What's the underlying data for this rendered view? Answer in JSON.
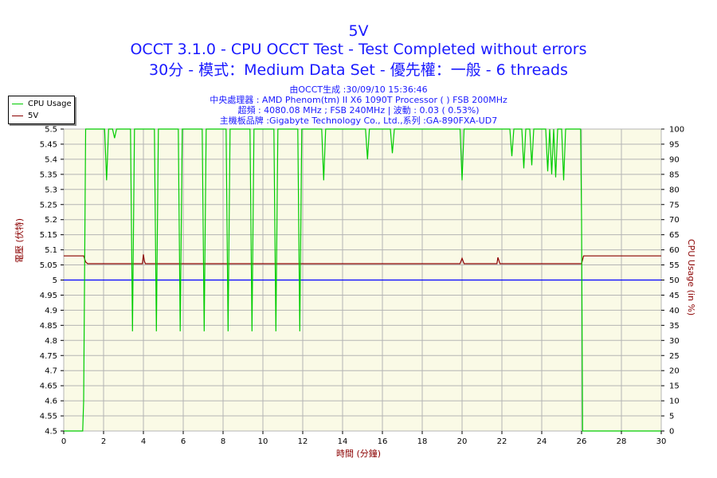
{
  "header": {
    "title": "5V",
    "subtitle1": "OCCT 3.1.0 - CPU OCCT Test - Test Completed without errors",
    "subtitle2": "30分 - 模式：Medium Data Set - 優先權：一般 - 6 threads",
    "info1": "由OCCT生成 :30/09/10 15:36:46",
    "info2": "中央處理器 : AMD Phenom(tm) II X6 1090T Processor (  ) FSB 200MHz",
    "info3": "超頻 : 4080.08 MHz ; FSB 240MHz | 波動 : 0.03 ( 0.53%)",
    "info4": "主機板品牌 :Gigabyte Technology Co., Ltd.,系列 :GA-890FXA-UD7"
  },
  "legend": {
    "cpu": "CPU Usage",
    "v5": "5V"
  },
  "colors": {
    "cpu": "#00cc00",
    "v5": "#8b0000",
    "reference": "#0000ff",
    "plot_bg": "#fafae6",
    "grid": "#b4b4b4"
  },
  "chart_data": {
    "type": "line",
    "xlabel": "時間 (分鐘)",
    "ylabel": "電壓 (伏特)",
    "y2label": "CPU Usage (in %)",
    "xlim": [
      0,
      30
    ],
    "ylim": [
      4.5,
      5.5
    ],
    "y2lim": [
      0,
      100
    ],
    "x_ticks": [
      0,
      2,
      4,
      6,
      8,
      10,
      12,
      14,
      16,
      18,
      20,
      22,
      24,
      26,
      28,
      30
    ],
    "y_ticks": [
      4.5,
      4.55,
      4.6,
      4.65,
      4.7,
      4.75,
      4.8,
      4.85,
      4.9,
      4.95,
      5,
      5.05,
      5.1,
      5.15,
      5.2,
      5.25,
      5.3,
      5.35,
      5.4,
      5.45,
      5.5
    ],
    "y2_ticks": [
      0,
      5,
      10,
      15,
      20,
      25,
      30,
      35,
      40,
      45,
      50,
      55,
      60,
      65,
      70,
      75,
      80,
      85,
      90,
      95,
      100
    ],
    "grid": true,
    "legend_position": "top-left",
    "reference_line": {
      "axis": "left",
      "value": 5.0
    },
    "series": [
      {
        "name": "5V",
        "axis": "left",
        "x": [
          0,
          1.0,
          1.1,
          1.2,
          3.95,
          4.0,
          4.05,
          4.1,
          19.9,
          20.0,
          20.1,
          21.75,
          21.8,
          21.9,
          26.0,
          26.1,
          30
        ],
        "y": [
          5.08,
          5.08,
          5.06,
          5.054,
          5.054,
          5.085,
          5.062,
          5.054,
          5.054,
          5.072,
          5.054,
          5.054,
          5.075,
          5.054,
          5.054,
          5.08,
          5.08
        ]
      },
      {
        "name": "CPU Usage",
        "axis": "right",
        "x": [
          0,
          0.95,
          1.0,
          1.1,
          1.2,
          2.05,
          2.15,
          2.25,
          2.45,
          2.55,
          2.65,
          3.35,
          3.45,
          3.55,
          4.55,
          4.65,
          4.75,
          5.75,
          5.85,
          5.95,
          6.95,
          7.05,
          7.15,
          8.15,
          8.25,
          8.35,
          9.35,
          9.45,
          9.55,
          10.55,
          10.65,
          10.75,
          11.75,
          11.85,
          11.95,
          12.95,
          13.05,
          13.15,
          15.15,
          15.25,
          15.35,
          16.4,
          16.5,
          16.6,
          19.9,
          20.0,
          20.1,
          22.4,
          22.5,
          22.6,
          23.0,
          23.1,
          23.2,
          23.4,
          23.5,
          23.6,
          24.2,
          24.3,
          24.4,
          24.4,
          24.5,
          24.6,
          24.7,
          24.8,
          25.0,
          25.1,
          25.2,
          25.95,
          26.0,
          26.05,
          26.1,
          30
        ],
        "y": [
          0,
          0,
          10,
          100,
          100,
          100,
          83,
          100,
          100,
          97,
          100,
          100,
          33,
          100,
          100,
          33,
          100,
          100,
          33,
          100,
          100,
          33,
          100,
          100,
          33,
          100,
          100,
          33,
          100,
          100,
          33,
          100,
          100,
          33,
          100,
          100,
          83,
          100,
          100,
          90,
          100,
          100,
          92,
          100,
          100,
          83,
          100,
          100,
          91,
          100,
          100,
          87,
          100,
          100,
          88,
          100,
          100,
          86,
          100,
          100,
          85,
          100,
          84,
          100,
          100,
          83,
          100,
          100,
          70,
          0,
          0,
          0
        ]
      }
    ]
  }
}
